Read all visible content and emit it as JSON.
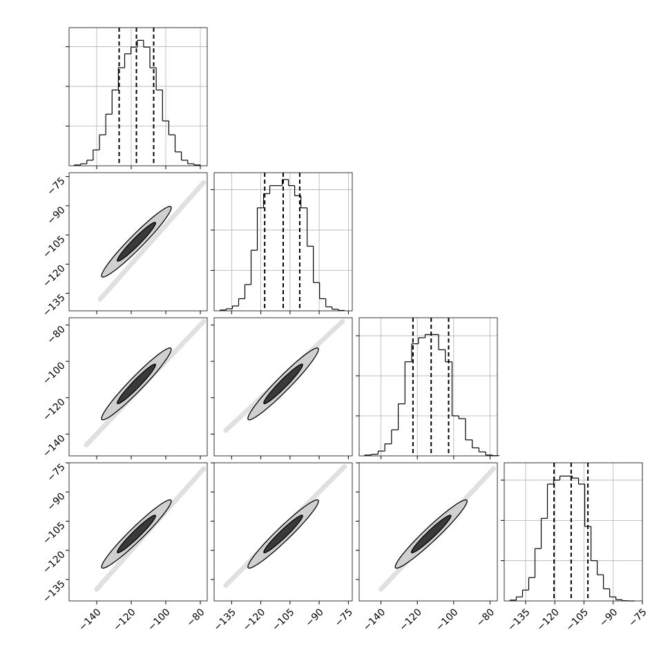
{
  "chart_data": {
    "type": "corner",
    "color": "#000000",
    "grid": true,
    "variables": [
      {
        "xlim": [
          -156,
          -76
        ],
        "xticks": [
          {
            "value": -140,
            "label": "−140"
          },
          {
            "value": -120,
            "label": "−120"
          },
          {
            "value": -100,
            "label": "−100"
          },
          {
            "value": -80,
            "label": "−80"
          }
        ],
        "bins": [
          -153,
          -149.35,
          -145.7,
          -142.05,
          -138.4,
          -134.75,
          -131.1,
          -127.45,
          -123.8,
          -120.15,
          -116.5,
          -112.85,
          -109.2,
          -105.55,
          -101.9,
          -98.25,
          -94.6,
          -90.95,
          -87.3,
          -83.65,
          -80
        ],
        "counts": [
          20,
          50,
          140,
          400,
          780,
          1300,
          1910,
          2470,
          2820,
          2990,
          3160,
          2990,
          2470,
          1910,
          1130,
          780,
          350,
          140,
          50,
          20
        ],
        "quantiles": [
          -127,
          -117,
          -107
        ],
        "ylim": [
          0,
          3480
        ],
        "yticks": [
          1000,
          2000,
          3000
        ]
      },
      {
        "xlim": [
          -144,
          -73
        ],
        "xticks": [
          {
            "value": -135,
            "label": "−135"
          },
          {
            "value": -120,
            "label": "−120"
          },
          {
            "value": -105,
            "label": "−105"
          },
          {
            "value": -90,
            "label": "−90"
          },
          {
            "value": -75,
            "label": "−75"
          }
        ],
        "bins": [
          -141,
          -137.8,
          -134.6,
          -131.4,
          -128.2,
          -125,
          -121.8,
          -118.6,
          -115.4,
          -112.2,
          -109,
          -105.8,
          -102.6,
          -99.4,
          -96.2,
          -93,
          -89.8,
          -86.6,
          -83.4,
          -80.2,
          -77
        ],
        "counts": [
          20,
          50,
          120,
          300,
          650,
          1500,
          2550,
          2900,
          3100,
          3100,
          3250,
          3100,
          2850,
          2550,
          1600,
          700,
          300,
          100,
          40,
          10
        ],
        "quantiles": [
          -118,
          -108.5,
          -100
        ],
        "ylim": [
          0,
          3420
        ],
        "yticks": [
          1000,
          2000,
          3000
        ]
      },
      {
        "xlim": [
          -152,
          -76
        ],
        "xticks": [
          {
            "value": -140,
            "label": "−140"
          },
          {
            "value": -120,
            "label": "−120"
          },
          {
            "value": -100,
            "label": "−100"
          },
          {
            "value": -80,
            "label": "−80"
          }
        ],
        "bins": [
          -149,
          -145.3,
          -141.6,
          -137.9,
          -134.2,
          -130.5,
          -126.8,
          -123.1,
          -119.4,
          -115.7,
          -112,
          -108.3,
          -104.6,
          -100.9,
          -97.2,
          -93.5,
          -89.8,
          -86.1,
          -82.4,
          -78.7,
          -75
        ],
        "counts": [
          20,
          40,
          120,
          300,
          650,
          1300,
          2350,
          2800,
          2950,
          3030,
          3030,
          2650,
          2350,
          1000,
          930,
          400,
          200,
          100,
          20,
          5
        ],
        "quantiles": [
          -122.4,
          -112.4,
          -102.8
        ],
        "ylim": [
          0,
          3450
        ],
        "yticks": [
          1000,
          2000,
          3000
        ]
      },
      {
        "xlim": [
          -146,
          -75
        ],
        "xticks": [
          {
            "value": -135,
            "label": "−135"
          },
          {
            "value": -120,
            "label": "−120"
          },
          {
            "value": -105,
            "label": "−105"
          },
          {
            "value": -90,
            "label": "−90"
          },
          {
            "value": -75,
            "label": "−75"
          }
        ],
        "bins": [
          -143,
          -139.8,
          -136.6,
          -133.4,
          -130.2,
          -127,
          -123.8,
          -120.6,
          -117.4,
          -114.2,
          -111,
          -107.8,
          -104.6,
          -101.4,
          -98.2,
          -95,
          -91.8,
          -88.6,
          -85.4,
          -82.2,
          -79
        ],
        "counts": [
          20,
          100,
          270,
          580,
          1300,
          2050,
          2900,
          3000,
          3100,
          3100,
          3050,
          2900,
          1850,
          1000,
          650,
          300,
          100,
          30,
          5,
          0
        ],
        "quantiles": [
          -120.4,
          -111.6,
          -103
        ],
        "ylim": [
          0,
          3430
        ],
        "yticks": [
          1000,
          2000,
          3000
        ]
      }
    ]
  }
}
